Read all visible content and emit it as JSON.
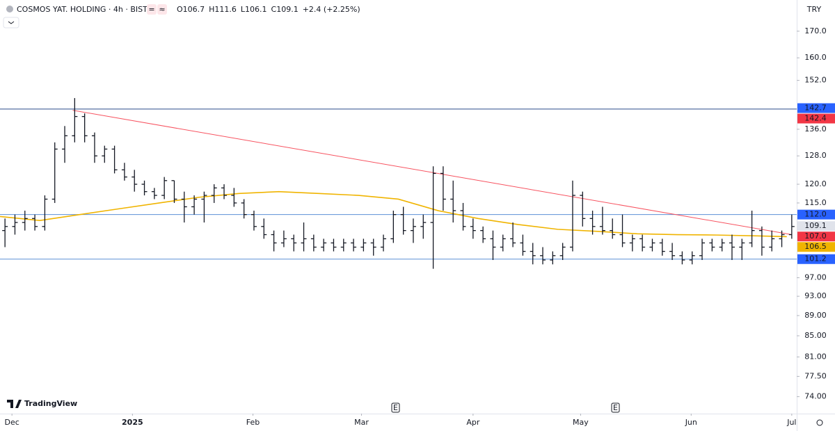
{
  "chart_data": {
    "type": "candlestick",
    "title": "COSMOS YAT. HOLDING · 4h · BIST",
    "legend_values": [
      "O106.7",
      "H111.6",
      "L106.1",
      "C109.1",
      "+2.4 (+2.25%)"
    ],
    "currency": "TRY",
    "brand": "TradingView",
    "log_scale": true,
    "ylim": [
      71.2,
      174.6
    ],
    "yticks": [
      {
        "value": 170,
        "label": "170.0"
      },
      {
        "value": 160,
        "label": "160.0"
      },
      {
        "value": 152,
        "label": "152.0"
      },
      {
        "value": 136,
        "label": "136.0"
      },
      {
        "value": 128,
        "label": "128.0"
      },
      {
        "value": 120,
        "label": "120.0"
      },
      {
        "value": 115,
        "label": "115.0"
      },
      {
        "value": 97,
        "label": "97.00"
      },
      {
        "value": 93,
        "label": "93.00"
      },
      {
        "value": 89,
        "label": "89.00"
      },
      {
        "value": 85,
        "label": "85.00"
      },
      {
        "value": 81,
        "label": "81.00"
      },
      {
        "value": 77.5,
        "label": "77.50"
      },
      {
        "value": 74,
        "label": "74.00"
      }
    ],
    "xlim": [
      0,
      80
    ],
    "xticks": [
      {
        "value": 1.2,
        "label": "Dec"
      },
      {
        "value": 13.3,
        "label": "2025"
      },
      {
        "value": 25.4,
        "label": "Feb"
      },
      {
        "value": 36.3,
        "label": "Mar"
      },
      {
        "value": 47.5,
        "label": "Apr"
      },
      {
        "value": 58.3,
        "label": "May"
      },
      {
        "value": 69.4,
        "label": "Jun"
      },
      {
        "value": 79.5,
        "label": "Jul"
      }
    ],
    "color": "#131722",
    "ohlc": {
      "open": [
        108,
        109,
        110,
        111,
        109,
        116,
        130,
        134,
        140,
        134,
        128,
        130,
        124,
        122,
        120,
        118,
        117,
        121,
        116,
        114,
        116,
        117,
        119,
        117,
        115,
        112,
        109,
        107,
        105,
        106,
        105,
        106,
        104,
        105,
        104,
        105,
        104,
        105,
        104,
        106,
        112,
        108,
        109,
        110,
        123,
        116,
        113,
        109,
        108,
        106,
        104,
        106,
        105,
        103,
        102,
        101,
        102,
        104,
        117,
        111,
        109,
        108,
        107,
        105,
        106,
        104,
        105,
        103,
        102,
        101,
        102,
        105,
        104,
        105,
        104,
        105,
        108,
        104,
        106,
        107
      ],
      "high": [
        111,
        112,
        113,
        112,
        117,
        132,
        137,
        146,
        141,
        135,
        131,
        131,
        126,
        124,
        121,
        119,
        122,
        121,
        118,
        117,
        118,
        120,
        120,
        119,
        116,
        113,
        111,
        108,
        108,
        107,
        110,
        107,
        106,
        106,
        106,
        106,
        106,
        106,
        107,
        113,
        114,
        111,
        112,
        125,
        125,
        121,
        115,
        111,
        109,
        108,
        107,
        110,
        107,
        105,
        104,
        103,
        105,
        121,
        118,
        113,
        114,
        111,
        112,
        107,
        107,
        106,
        106,
        105,
        103,
        103,
        106,
        106,
        106,
        107,
        106,
        113,
        109,
        108,
        108,
        112
      ],
      "low": [
        104,
        107,
        108,
        108,
        108,
        115,
        126,
        132,
        132,
        126,
        126,
        123,
        121,
        118,
        117,
        116,
        116,
        115,
        110,
        112,
        110,
        115,
        116,
        114,
        111,
        108,
        106,
        103,
        104,
        103,
        103,
        103,
        103,
        103,
        103,
        103,
        103,
        102,
        103,
        105,
        107,
        105,
        106,
        99,
        113,
        110,
        108,
        106,
        105,
        101,
        103,
        104,
        102,
        100,
        100,
        100,
        101,
        103,
        109,
        107,
        107,
        106,
        104,
        103,
        103,
        103,
        102,
        101,
        100,
        100,
        101,
        103,
        103,
        101,
        101,
        104,
        102,
        103,
        104,
        106
      ],
      "close": [
        109,
        110,
        111,
        109,
        116,
        130,
        134,
        140,
        134,
        128,
        130,
        124,
        122,
        120,
        118,
        117,
        121,
        116,
        114,
        116,
        117,
        119,
        117,
        115,
        112,
        109,
        107,
        105,
        106,
        105,
        106,
        104,
        105,
        104,
        105,
        104,
        105,
        104,
        106,
        112,
        108,
        109,
        110,
        123,
        116,
        113,
        109,
        108,
        106,
        104,
        106,
        105,
        103,
        102,
        101,
        102,
        104,
        117,
        111,
        109,
        108,
        107,
        105,
        106,
        104,
        105,
        103,
        102,
        101,
        102,
        105,
        104,
        105,
        104,
        105,
        108,
        104,
        106,
        107,
        109
      ]
    },
    "moving_average": {
      "color": "#f0b400",
      "x": [
        0,
        4,
        8,
        12,
        16,
        20,
        24,
        28,
        32,
        36,
        40,
        44,
        48,
        52,
        56,
        60,
        64,
        68,
        72,
        76,
        79
      ],
      "values": [
        111.5,
        110.5,
        112,
        113.5,
        115,
        116.5,
        117.5,
        118,
        117.5,
        117,
        116,
        113,
        111,
        109.5,
        108.3,
        107.8,
        107.2,
        107,
        106.9,
        106.7,
        106.5
      ]
    },
    "trendline": {
      "color": "#f7525f",
      "x": [
        7.3,
        79.5
      ],
      "values": [
        142,
        107
      ]
    },
    "levels": [
      {
        "value": 142.4,
        "color": "#2a4a8a"
      },
      {
        "value": 112,
        "color": "#5b8fd6"
      },
      {
        "value": 101.2,
        "color": "#5b8fd6"
      }
    ],
    "price_tags": [
      {
        "value": 142.7,
        "label": "142.7",
        "color": "#2962ff",
        "text_color": "#ffffff"
      },
      {
        "value": 142.4,
        "label": "142.4",
        "color": "#f23645",
        "text_color": "#ffffff"
      },
      {
        "value": 112,
        "label": "112.0",
        "color": "#2962ff",
        "text_color": "#ffffff"
      },
      {
        "value": 109.1,
        "label": "109.1",
        "color": "#e0e3eb",
        "text_color": "#131722"
      },
      {
        "value": 107,
        "label": "107.0",
        "color": "#f23645",
        "text_color": "#ffffff"
      },
      {
        "value": 106.5,
        "label": "106.5",
        "color": "#f0b400",
        "text_color": "#131722"
      },
      {
        "value": 101.2,
        "label": "101.2",
        "color": "#2962ff",
        "text_color": "#ffffff"
      }
    ]
  }
}
